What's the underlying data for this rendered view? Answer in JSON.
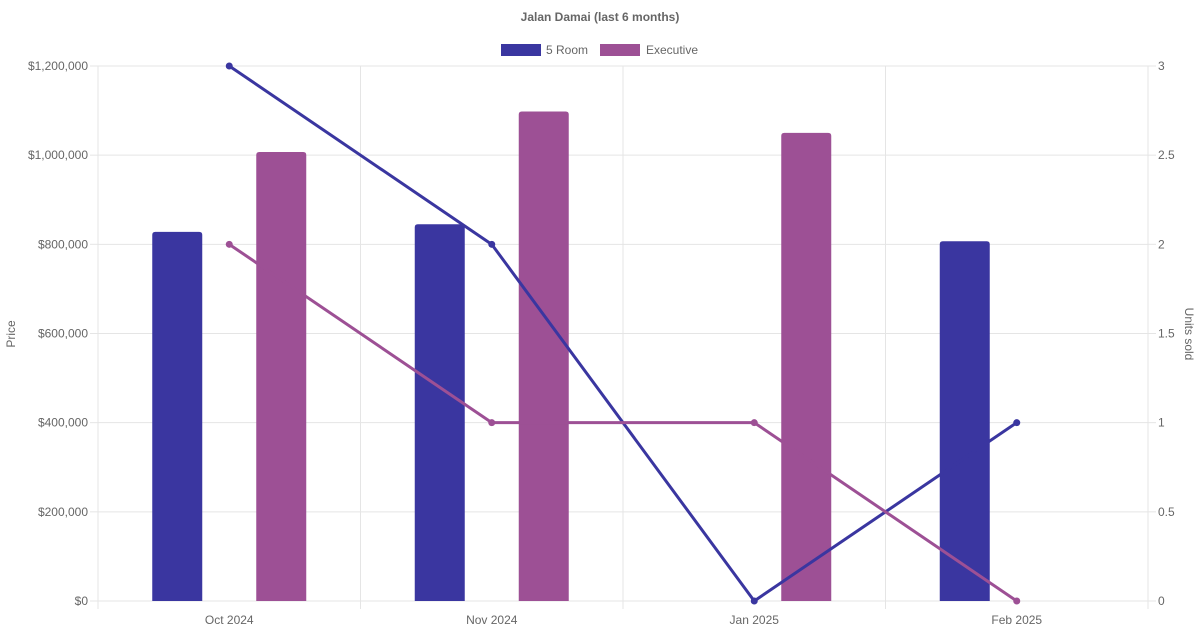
{
  "chart_data": {
    "type": "bar",
    "title": "Jalan Damai (last 6 months)",
    "categories": [
      "Oct 2024",
      "Nov 2024",
      "Jan 2025",
      "Feb 2025"
    ],
    "ylabel": "Price",
    "y2label": "Units sold",
    "ylim": [
      0,
      1200000
    ],
    "y2lim": [
      0,
      3
    ],
    "y_ticks": [
      "$0",
      "$200,000",
      "$400,000",
      "$600,000",
      "$800,000",
      "$1,000,000",
      "$1,200,000"
    ],
    "y2_ticks": [
      "0",
      "0.5",
      "1",
      "1.5",
      "2",
      "2.5",
      "3"
    ],
    "grid": true,
    "legend_position": "top",
    "series": [
      {
        "name": "5 Room",
        "color": "#3a36a0",
        "price_values": [
          828000,
          845000,
          null,
          807000
        ],
        "units_sold": [
          3,
          2,
          0,
          1
        ]
      },
      {
        "name": "Executive",
        "color": "#9d5095",
        "price_values": [
          1007000,
          1098000,
          1050000,
          null
        ],
        "units_sold": [
          2,
          1,
          1,
          0
        ]
      }
    ]
  }
}
